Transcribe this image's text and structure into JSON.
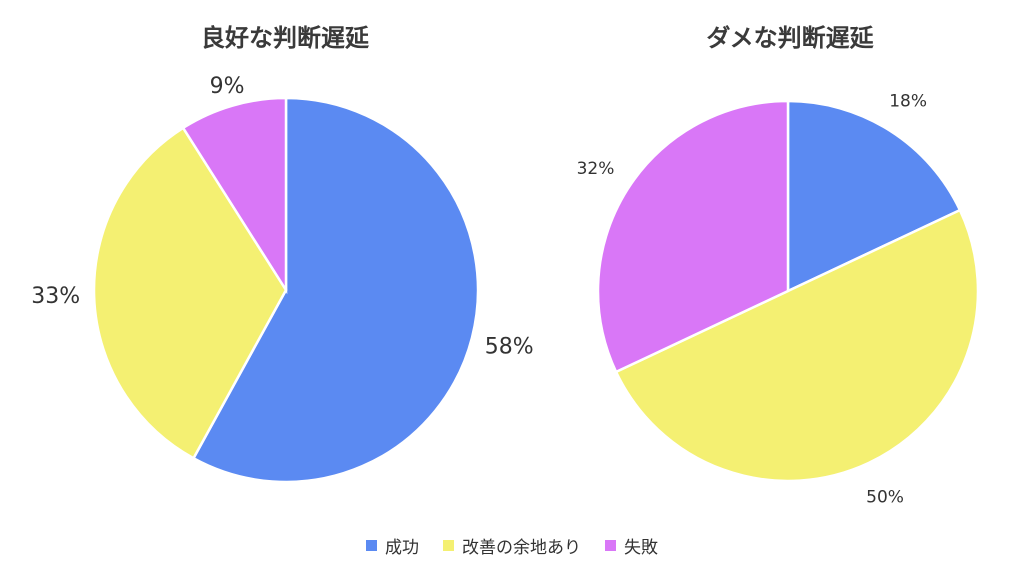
{
  "legend": [
    {
      "label": "成功",
      "color": "#5b8af2"
    },
    {
      "label": "改善の余地あり",
      "color": "#f4f072"
    },
    {
      "label": "失敗",
      "color": "#d977f7"
    }
  ],
  "chart_data": [
    {
      "type": "pie",
      "title": "良好な判断遅延",
      "categories": [
        "成功",
        "改善の余地あり",
        "失敗"
      ],
      "values": [
        58,
        33,
        9
      ],
      "value_labels": [
        "58%",
        "33%",
        "9%"
      ],
      "colors": [
        "#5b8af2",
        "#f4f072",
        "#d977f7"
      ],
      "legend_position": "bottom"
    },
    {
      "type": "pie",
      "title": "ダメな判断遅延",
      "categories": [
        "成功",
        "改善の余地あり",
        "失敗"
      ],
      "values": [
        18,
        50,
        32
      ],
      "value_labels": [
        "18%",
        "50%",
        "32%"
      ],
      "colors": [
        "#5b8af2",
        "#f4f072",
        "#d977f7"
      ],
      "legend_position": "bottom"
    }
  ]
}
